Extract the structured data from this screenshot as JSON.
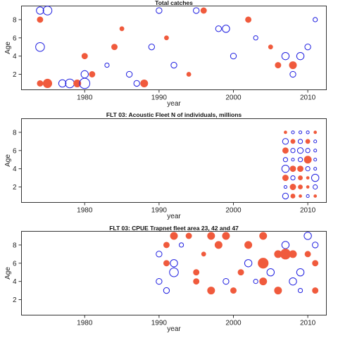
{
  "colors": {
    "positive": "#f05a3c",
    "negative": "#1f1fe0"
  },
  "chart_data": [
    {
      "type": "scatter",
      "title": "Total catches",
      "xlabel": "year",
      "ylabel": "Age",
      "xlim": [
        1971.5,
        2012.5
      ],
      "ylim": [
        0.3,
        9.5
      ],
      "xticks": [
        1980,
        1990,
        2000,
        2010
      ],
      "yticks": [
        2,
        4,
        6,
        8
      ],
      "grid": false,
      "series": [
        {
          "x": 1974,
          "y": 9,
          "value": -4
        },
        {
          "x": 1974,
          "y": 8,
          "value": 3
        },
        {
          "x": 1974,
          "y": 5,
          "value": -5
        },
        {
          "x": 1974,
          "y": 1,
          "value": 3
        },
        {
          "x": 1975,
          "y": 9,
          "value": -5
        },
        {
          "x": 1975,
          "y": 1,
          "value": 5
        },
        {
          "x": 1977,
          "y": 1,
          "value": -4
        },
        {
          "x": 1978,
          "y": 1,
          "value": -5
        },
        {
          "x": 1979,
          "y": 1,
          "value": 4
        },
        {
          "x": 1980,
          "y": 1,
          "value": -6
        },
        {
          "x": 1980,
          "y": 2,
          "value": -4
        },
        {
          "x": 1980,
          "y": 4,
          "value": 3
        },
        {
          "x": 1981,
          "y": 2,
          "value": 3
        },
        {
          "x": 1984,
          "y": 5,
          "value": 3
        },
        {
          "x": 1986,
          "y": 2,
          "value": -3
        },
        {
          "x": 1987,
          "y": 1,
          "value": -3
        },
        {
          "x": 1988,
          "y": 1,
          "value": 4
        },
        {
          "x": 1989,
          "y": 5,
          "value": -3
        },
        {
          "x": 1990,
          "y": 9,
          "value": -3
        },
        {
          "x": 1992,
          "y": 3,
          "value": -3
        },
        {
          "x": 1995,
          "y": 9,
          "value": -3
        },
        {
          "x": 1996,
          "y": 9,
          "value": 3
        },
        {
          "x": 1998,
          "y": 7,
          "value": -3
        },
        {
          "x": 1999,
          "y": 7,
          "value": -4
        },
        {
          "x": 2000,
          "y": 4,
          "value": -3
        },
        {
          "x": 2006,
          "y": 3,
          "value": 3
        },
        {
          "x": 2007,
          "y": 4,
          "value": -4
        },
        {
          "x": 2008,
          "y": 3,
          "value": 4
        },
        {
          "x": 2009,
          "y": 4,
          "value": -4
        },
        {
          "x": 2010,
          "y": 5,
          "value": -3
        },
        {
          "x": 2008,
          "y": 2,
          "value": -3
        },
        {
          "x": 2002,
          "y": 8,
          "value": 3
        },
        {
          "x": 1983,
          "y": 3,
          "value": -2
        },
        {
          "x": 1985,
          "y": 7,
          "value": 2
        },
        {
          "x": 1991,
          "y": 6,
          "value": 2
        },
        {
          "x": 1994,
          "y": 2,
          "value": 2
        },
        {
          "x": 2003,
          "y": 6,
          "value": -2
        },
        {
          "x": 2005,
          "y": 5,
          "value": 2
        },
        {
          "x": 2011,
          "y": 8,
          "value": -2
        }
      ]
    },
    {
      "type": "scatter",
      "title": "FLT 03: Acoustic Fleet  N of individuals, millions",
      "xlabel": "year",
      "ylabel": "Age",
      "xlim": [
        1971.5,
        2012.5
      ],
      "ylim": [
        0.3,
        9.5
      ],
      "xticks": [
        1980,
        1990,
        2000,
        2010
      ],
      "yticks": [
        2,
        4,
        6,
        8
      ],
      "grid": false,
      "series": [
        {
          "x": 2007,
          "y": 8,
          "value": 1
        },
        {
          "x": 2008,
          "y": 8,
          "value": -1
        },
        {
          "x": 2009,
          "y": 8,
          "value": -1
        },
        {
          "x": 2010,
          "y": 8,
          "value": -1
        },
        {
          "x": 2011,
          "y": 8,
          "value": 1
        },
        {
          "x": 2007,
          "y": 7,
          "value": -3
        },
        {
          "x": 2008,
          "y": 7,
          "value": 2
        },
        {
          "x": 2009,
          "y": 7,
          "value": -2
        },
        {
          "x": 2010,
          "y": 7,
          "value": 2
        },
        {
          "x": 2011,
          "y": 7,
          "value": -1
        },
        {
          "x": 2007,
          "y": 6,
          "value": 3
        },
        {
          "x": 2008,
          "y": 6,
          "value": -2
        },
        {
          "x": 2009,
          "y": 6,
          "value": -3
        },
        {
          "x": 2010,
          "y": 6,
          "value": -2
        },
        {
          "x": 2011,
          "y": 6,
          "value": -1
        },
        {
          "x": 2007,
          "y": 5,
          "value": -2
        },
        {
          "x": 2008,
          "y": 5,
          "value": -1
        },
        {
          "x": 2009,
          "y": 5,
          "value": -2
        },
        {
          "x": 2010,
          "y": 5,
          "value": 4
        },
        {
          "x": 2011,
          "y": 5,
          "value": -1
        },
        {
          "x": 2007,
          "y": 4,
          "value": -4
        },
        {
          "x": 2008,
          "y": 4,
          "value": 3
        },
        {
          "x": 2009,
          "y": 4,
          "value": 3
        },
        {
          "x": 2010,
          "y": 4,
          "value": -2
        },
        {
          "x": 2011,
          "y": 4,
          "value": -1
        },
        {
          "x": 2007,
          "y": 3,
          "value": 3
        },
        {
          "x": 2008,
          "y": 3,
          "value": -2
        },
        {
          "x": 2009,
          "y": 3,
          "value": 2
        },
        {
          "x": 2010,
          "y": 3,
          "value": 1
        },
        {
          "x": 2011,
          "y": 3,
          "value": -4
        },
        {
          "x": 2007,
          "y": 2,
          "value": -1
        },
        {
          "x": 2008,
          "y": 2,
          "value": 3
        },
        {
          "x": 2009,
          "y": 2,
          "value": 2
        },
        {
          "x": 2010,
          "y": 2,
          "value": 1
        },
        {
          "x": 2011,
          "y": 2,
          "value": -2
        },
        {
          "x": 2007,
          "y": 1,
          "value": -3
        },
        {
          "x": 2008,
          "y": 1,
          "value": 2
        },
        {
          "x": 2009,
          "y": 1,
          "value": 1
        },
        {
          "x": 2010,
          "y": 1,
          "value": -1
        },
        {
          "x": 2011,
          "y": 1,
          "value": 1
        }
      ]
    },
    {
      "type": "scatter",
      "title": "FLT 03: CPUE Trapnet fleet area 23, 42 and 47",
      "xlabel": "year",
      "ylabel": "Age",
      "xlim": [
        1971.5,
        2012.5
      ],
      "ylim": [
        0.3,
        9.5
      ],
      "xticks": [
        1980,
        1990,
        2000,
        2010
      ],
      "yticks": [
        2,
        4,
        6,
        8
      ],
      "grid": false,
      "series": [
        {
          "x": 1992,
          "y": 9,
          "value": 4
        },
        {
          "x": 1994,
          "y": 9,
          "value": 3
        },
        {
          "x": 1997,
          "y": 9,
          "value": 4
        },
        {
          "x": 1999,
          "y": 9,
          "value": 4
        },
        {
          "x": 2004,
          "y": 9,
          "value": 4
        },
        {
          "x": 2010,
          "y": 9,
          "value": -4
        },
        {
          "x": 1991,
          "y": 8,
          "value": 3
        },
        {
          "x": 1998,
          "y": 8,
          "value": 4
        },
        {
          "x": 2002,
          "y": 8,
          "value": 4
        },
        {
          "x": 2007,
          "y": 8,
          "value": -4
        },
        {
          "x": 2011,
          "y": 8,
          "value": -3
        },
        {
          "x": 1990,
          "y": 7,
          "value": -3
        },
        {
          "x": 2006,
          "y": 7,
          "value": 4
        },
        {
          "x": 2007,
          "y": 7,
          "value": 6
        },
        {
          "x": 2008,
          "y": 7,
          "value": 4
        },
        {
          "x": 2010,
          "y": 7,
          "value": 3
        },
        {
          "x": 1991,
          "y": 6,
          "value": 3
        },
        {
          "x": 1992,
          "y": 6,
          "value": -4
        },
        {
          "x": 2002,
          "y": 6,
          "value": -4
        },
        {
          "x": 2004,
          "y": 6,
          "value": 6
        },
        {
          "x": 2011,
          "y": 6,
          "value": 3
        },
        {
          "x": 1992,
          "y": 5,
          "value": -5
        },
        {
          "x": 1995,
          "y": 5,
          "value": 3
        },
        {
          "x": 2001,
          "y": 5,
          "value": 3
        },
        {
          "x": 2005,
          "y": 5,
          "value": -4
        },
        {
          "x": 2009,
          "y": 5,
          "value": -4
        },
        {
          "x": 1990,
          "y": 4,
          "value": -3
        },
        {
          "x": 1995,
          "y": 4,
          "value": 3
        },
        {
          "x": 1999,
          "y": 4,
          "value": -3
        },
        {
          "x": 2004,
          "y": 4,
          "value": 4
        },
        {
          "x": 2008,
          "y": 4,
          "value": -4
        },
        {
          "x": 1991,
          "y": 3,
          "value": -3
        },
        {
          "x": 1997,
          "y": 3,
          "value": 4
        },
        {
          "x": 2000,
          "y": 3,
          "value": 3
        },
        {
          "x": 2006,
          "y": 3,
          "value": 4
        },
        {
          "x": 2011,
          "y": 3,
          "value": 3
        },
        {
          "x": 1993,
          "y": 8,
          "value": -2
        },
        {
          "x": 1996,
          "y": 7,
          "value": 2
        },
        {
          "x": 2003,
          "y": 4,
          "value": -2
        },
        {
          "x": 2009,
          "y": 3,
          "value": -2
        }
      ]
    }
  ]
}
